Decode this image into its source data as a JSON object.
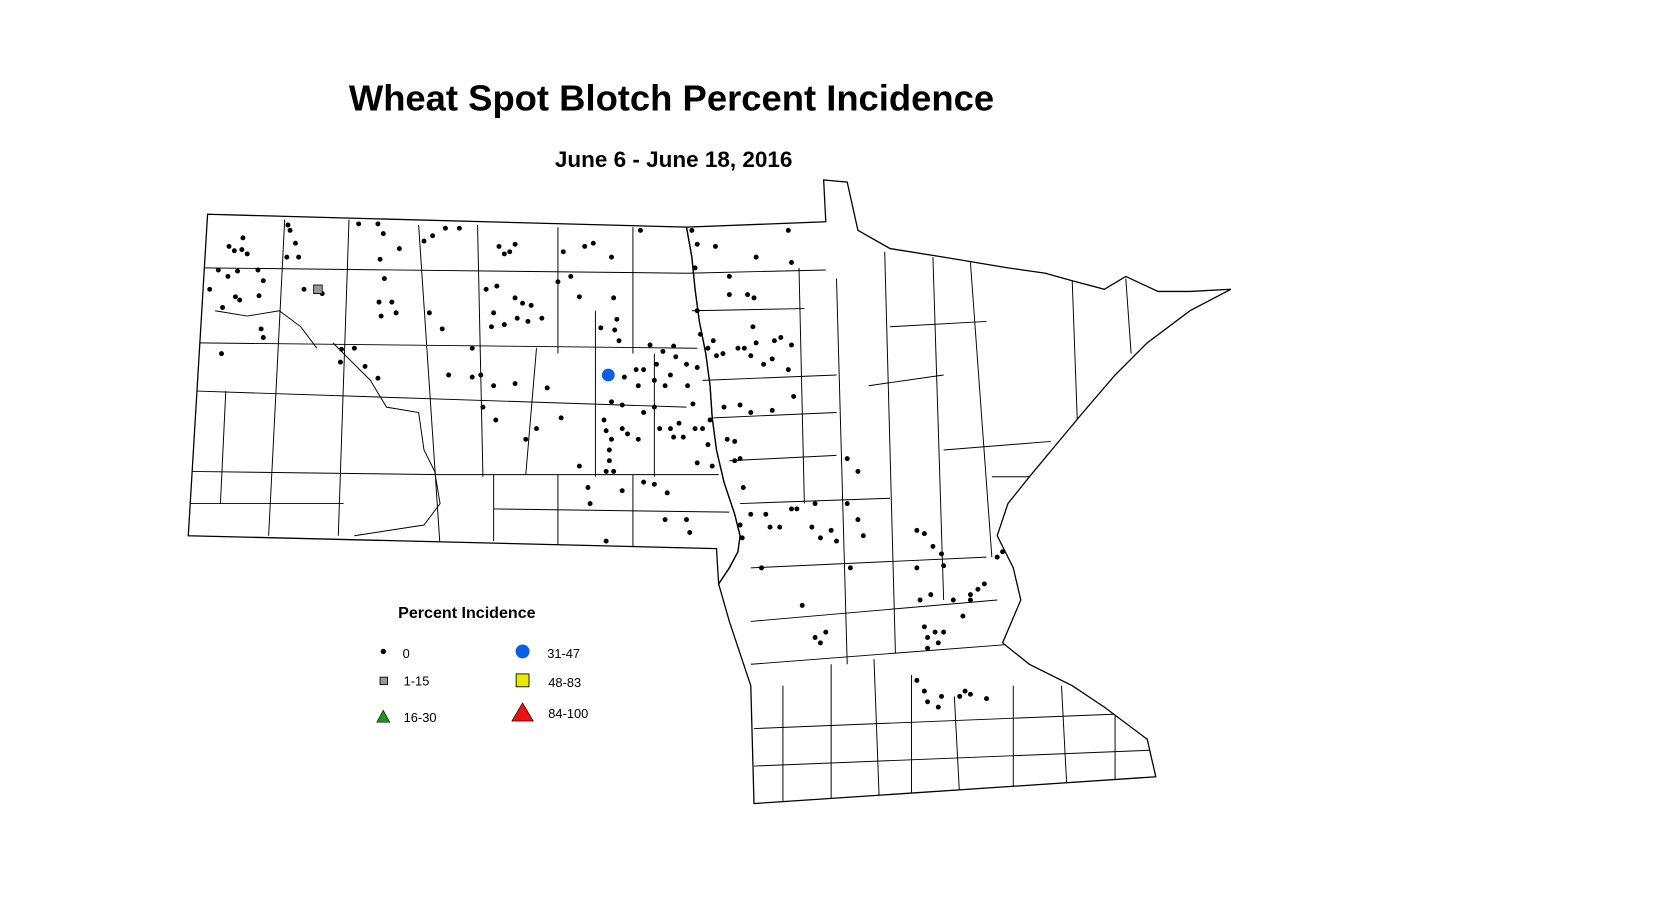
{
  "title": "Wheat Spot Blotch Percent Incidence",
  "subtitle": "June 6 - June 18, 2016",
  "legend": {
    "title": "Percent Incidence",
    "items": [
      {
        "label": "0",
        "shape": "dot",
        "color": "#000000"
      },
      {
        "label": "1-15",
        "shape": "square",
        "color": "#999999"
      },
      {
        "label": "16-30",
        "shape": "triangle",
        "color": "#1a9a1a"
      },
      {
        "label": "31-47",
        "shape": "circle",
        "color": "#0a5ee8"
      },
      {
        "label": "48-83",
        "shape": "square",
        "color": "#e8e800"
      },
      {
        "label": "84-100",
        "shape": "triangle",
        "color": "#ee1111"
      }
    ]
  },
  "map": {
    "observation_categories_present": [
      "0",
      "1-15",
      "31-47"
    ]
  }
}
